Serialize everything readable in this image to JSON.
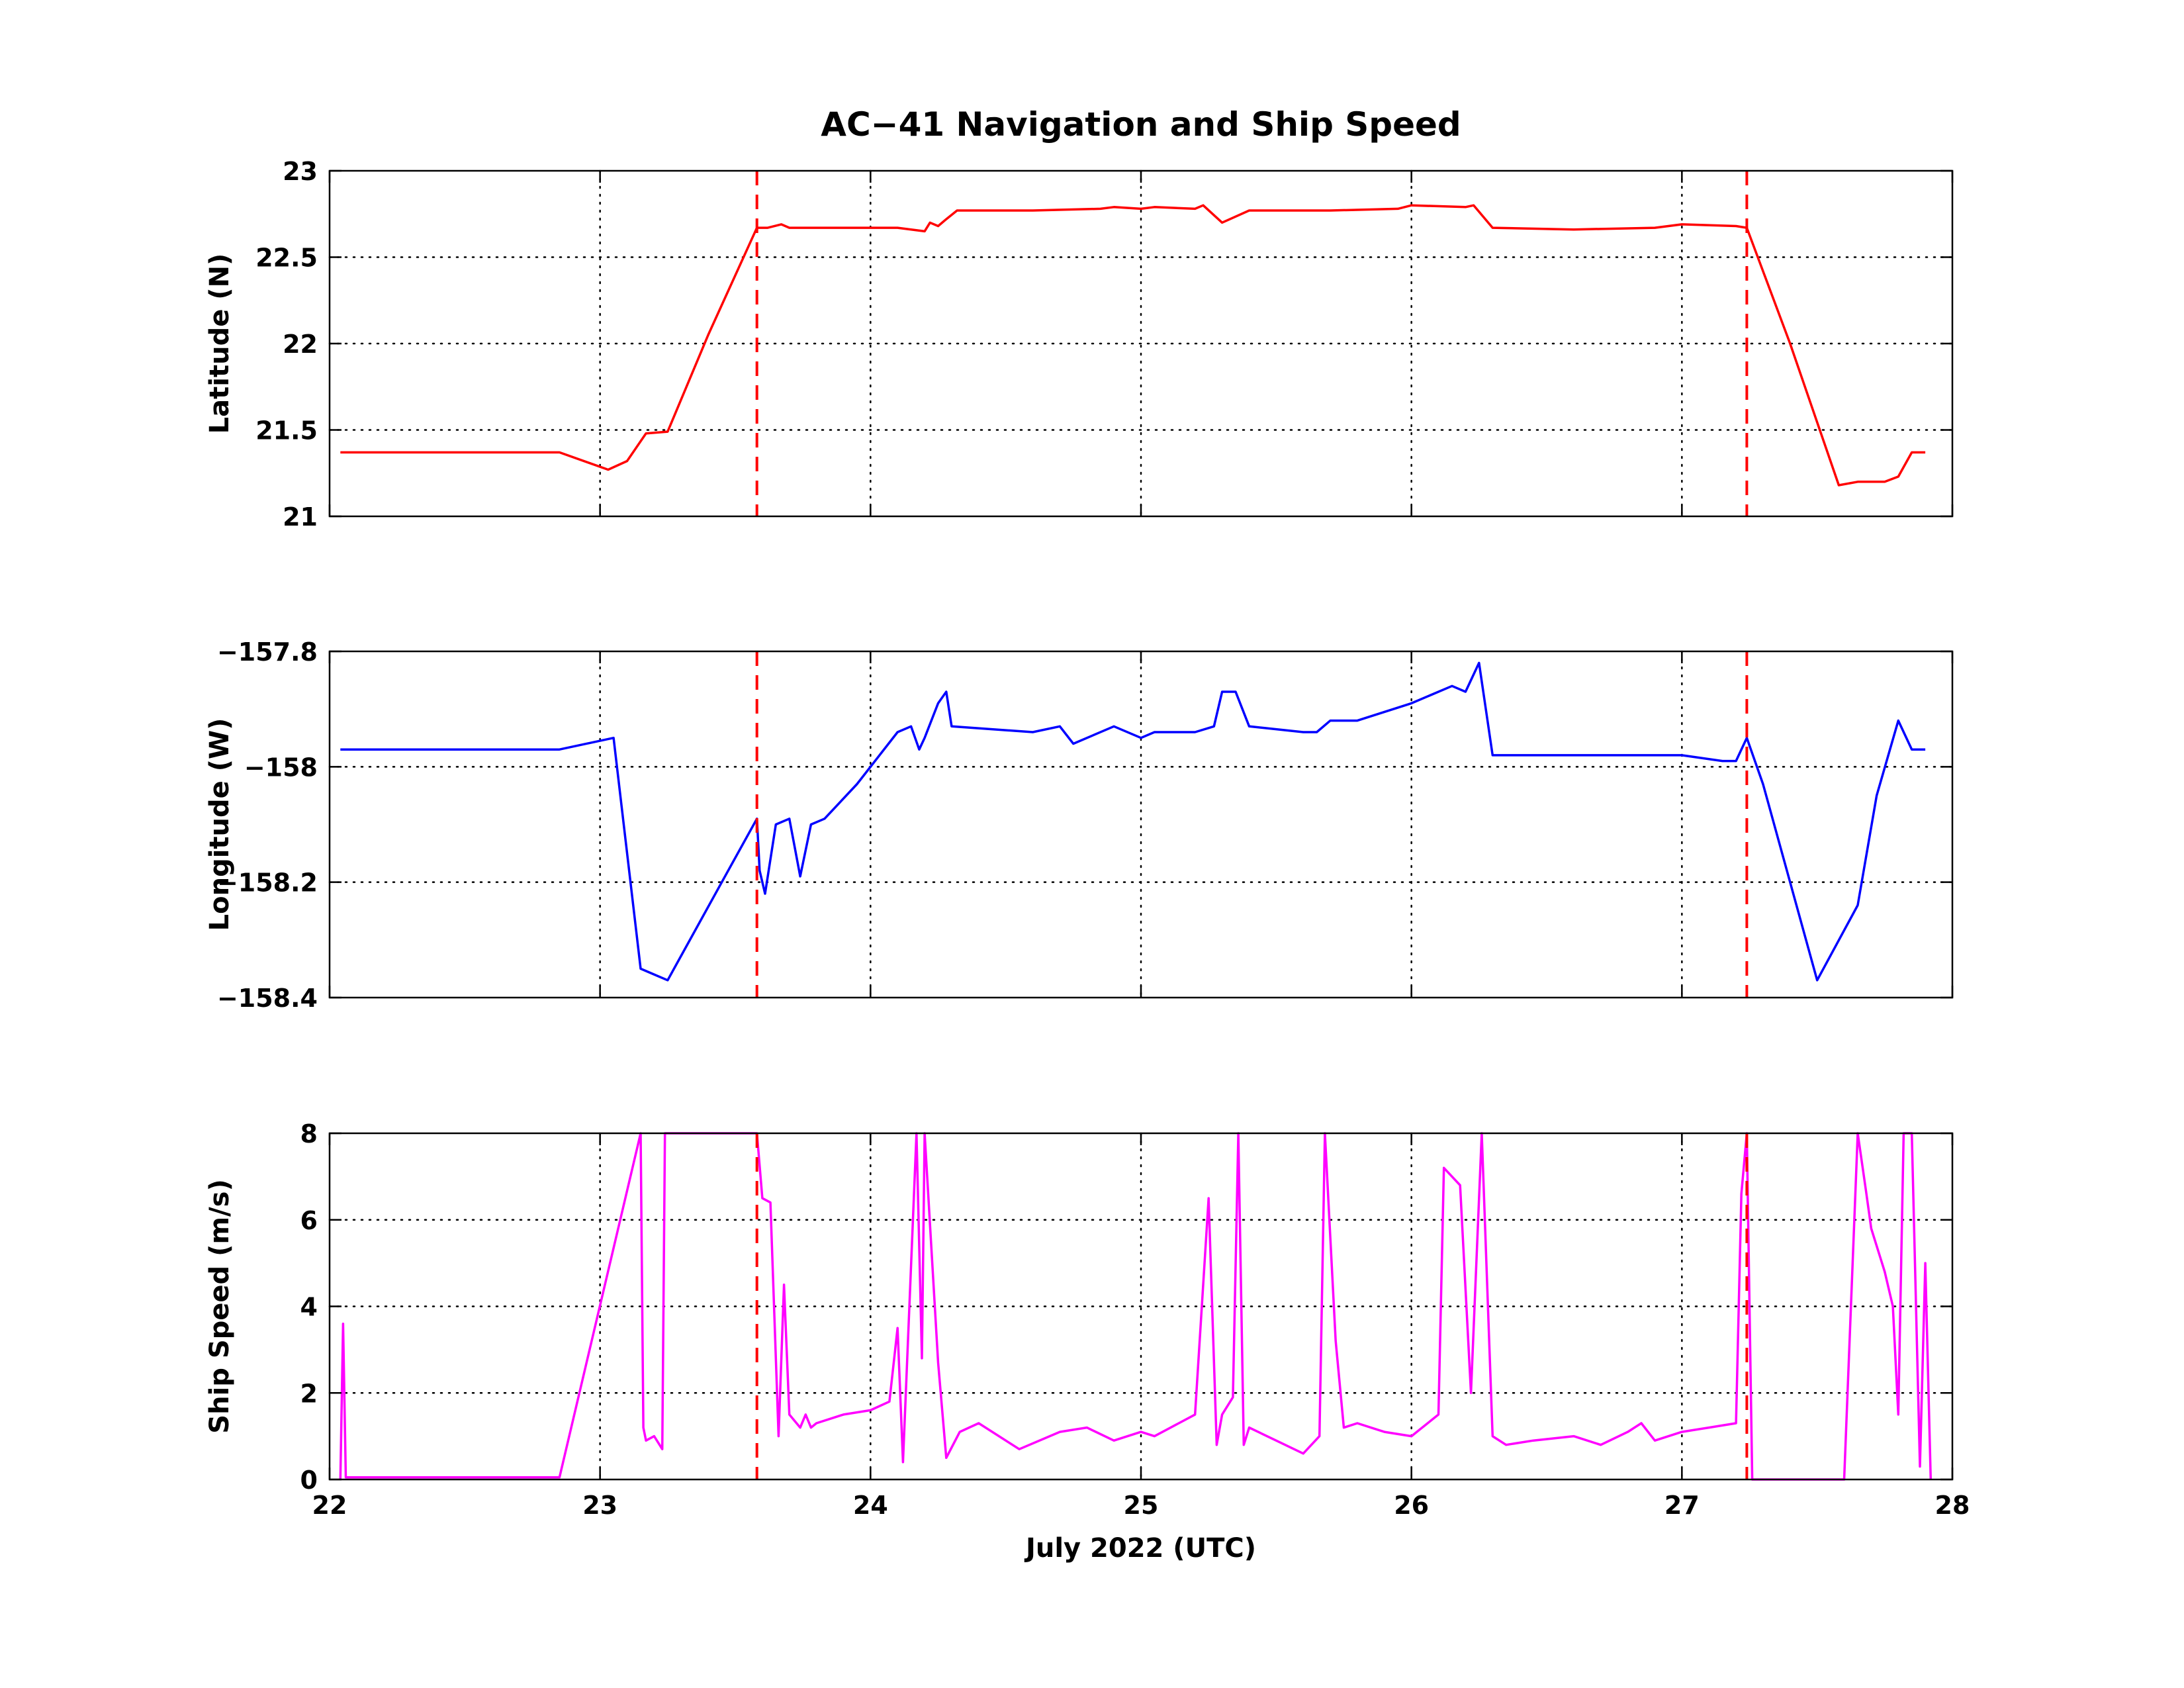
{
  "title": "AC−41 Navigation and Ship Speed",
  "xlabel": "July 2022 (UTC)",
  "chart_data": [
    {
      "type": "line",
      "title": "AC−41 Navigation and Ship Speed",
      "ylabel": "Latitude (N)",
      "xlabel": "",
      "xlim": [
        22,
        28
      ],
      "ylim": [
        21,
        23
      ],
      "xticks": [
        22,
        23,
        24,
        25,
        26,
        27,
        28
      ],
      "yticks": [
        21,
        21.5,
        22,
        22.5,
        23
      ],
      "ytick_labels": [
        "21",
        "21.5",
        "22",
        "22.5",
        "23"
      ],
      "grid": true,
      "color": "#ff0000",
      "vlines": [
        23.58,
        27.24
      ],
      "vline_color": "#ff0000",
      "x": [
        22.04,
        22.85,
        23.03,
        23.1,
        23.17,
        23.25,
        23.4,
        23.58,
        23.62,
        23.67,
        23.7,
        23.9,
        24.1,
        24.2,
        24.22,
        24.25,
        24.28,
        24.32,
        24.6,
        24.85,
        24.9,
        25.0,
        25.05,
        25.2,
        25.23,
        25.3,
        25.4,
        25.7,
        25.95,
        26.0,
        26.2,
        26.23,
        26.3,
        26.6,
        26.9,
        27.0,
        27.2,
        27.24,
        27.4,
        27.58,
        27.65,
        27.75,
        27.8,
        27.85,
        27.9
      ],
      "y": [
        21.37,
        21.37,
        21.27,
        21.32,
        21.48,
        21.49,
        22.05,
        22.67,
        22.67,
        22.69,
        22.67,
        22.67,
        22.67,
        22.65,
        22.7,
        22.68,
        22.72,
        22.77,
        22.77,
        22.78,
        22.79,
        22.78,
        22.79,
        22.78,
        22.8,
        22.7,
        22.77,
        22.77,
        22.78,
        22.8,
        22.79,
        22.8,
        22.67,
        22.66,
        22.67,
        22.69,
        22.68,
        22.67,
        22.0,
        21.18,
        21.2,
        21.2,
        21.23,
        21.37,
        21.37
      ]
    },
    {
      "type": "line",
      "ylabel": "Longitude (W)",
      "xlabel": "",
      "xlim": [
        22,
        28
      ],
      "ylim": [
        -158.4,
        -157.8
      ],
      "xticks": [
        22,
        23,
        24,
        25,
        26,
        27,
        28
      ],
      "yticks": [
        -158.4,
        -158.2,
        -158,
        -157.8
      ],
      "ytick_labels": [
        "−158.4",
        "−158.2",
        "−158",
        "−157.8"
      ],
      "grid": true,
      "color": "#0000ff",
      "vlines": [
        23.58,
        27.24
      ],
      "vline_color": "#ff0000",
      "x": [
        22.04,
        22.85,
        23.05,
        23.15,
        23.2,
        23.25,
        23.45,
        23.58,
        23.59,
        23.61,
        23.65,
        23.7,
        23.74,
        23.78,
        23.83,
        23.95,
        24.1,
        24.15,
        24.18,
        24.2,
        24.25,
        24.28,
        24.3,
        24.6,
        24.7,
        24.75,
        24.9,
        25.0,
        25.05,
        25.2,
        25.27,
        25.3,
        25.35,
        25.4,
        25.6,
        25.65,
        25.7,
        25.8,
        26.0,
        26.15,
        26.2,
        26.25,
        26.3,
        26.6,
        26.8,
        27.0,
        27.15,
        27.2,
        27.24,
        27.3,
        27.5,
        27.65,
        27.72,
        27.8,
        27.85,
        27.9
      ],
      "y": [
        -157.97,
        -157.97,
        -157.95,
        -158.35,
        -158.36,
        -158.37,
        -158.2,
        -158.09,
        -158.18,
        -158.22,
        -158.1,
        -158.09,
        -158.19,
        -158.1,
        -158.09,
        -158.03,
        -157.94,
        -157.93,
        -157.97,
        -157.95,
        -157.89,
        -157.87,
        -157.93,
        -157.94,
        -157.93,
        -157.96,
        -157.93,
        -157.95,
        -157.94,
        -157.94,
        -157.93,
        -157.87,
        -157.87,
        -157.93,
        -157.94,
        -157.94,
        -157.92,
        -157.92,
        -157.89,
        -157.86,
        -157.87,
        -157.82,
        -157.98,
        -157.98,
        -157.98,
        -157.98,
        -157.99,
        -157.99,
        -157.95,
        -158.03,
        -158.37,
        -158.24,
        -158.05,
        -157.92,
        -157.97,
        -157.97
      ]
    },
    {
      "type": "line",
      "ylabel": "Ship Speed (m/s)",
      "xlabel": "July 2022 (UTC)",
      "xlim": [
        22,
        28
      ],
      "ylim": [
        0,
        8
      ],
      "xticks": [
        22,
        23,
        24,
        25,
        26,
        27,
        28
      ],
      "yticks": [
        0,
        2,
        4,
        6,
        8
      ],
      "xtick_labels": [
        "22",
        "23",
        "24",
        "25",
        "26",
        "27",
        "28"
      ],
      "ytick_labels": [
        "0",
        "2",
        "4",
        "6",
        "8"
      ],
      "grid": true,
      "color": "#ff00ff",
      "vlines": [
        23.58,
        27.24
      ],
      "vline_color": "#ff0000",
      "x": [
        22.04,
        22.05,
        22.06,
        22.07,
        22.85,
        23.15,
        23.16,
        23.17,
        23.2,
        23.23,
        23.24,
        23.25,
        23.3,
        23.58,
        23.6,
        23.63,
        23.66,
        23.68,
        23.7,
        23.74,
        23.76,
        23.78,
        23.8,
        23.9,
        24.0,
        24.07,
        24.1,
        24.12,
        24.17,
        24.19,
        24.2,
        24.25,
        24.28,
        24.33,
        24.4,
        24.55,
        24.7,
        24.8,
        24.9,
        25.0,
        25.05,
        25.2,
        25.25,
        25.28,
        25.3,
        25.34,
        25.36,
        25.38,
        25.4,
        25.5,
        25.6,
        25.66,
        25.68,
        25.72,
        25.75,
        25.8,
        25.9,
        26.0,
        26.1,
        26.12,
        26.18,
        26.22,
        26.26,
        26.3,
        26.35,
        26.45,
        26.6,
        26.7,
        26.8,
        26.85,
        26.9,
        27.0,
        27.1,
        27.2,
        27.22,
        27.24,
        27.26,
        27.6,
        27.65,
        27.68,
        27.7,
        27.75,
        27.78,
        27.8,
        27.82,
        27.85,
        27.88,
        27.9,
        27.92
      ],
      "y": [
        0,
        3.6,
        0.05,
        0.05,
        0.05,
        8,
        1.2,
        0.9,
        1.0,
        0.7,
        8,
        8,
        8,
        8,
        6.5,
        6.4,
        1.0,
        4.5,
        1.5,
        1.2,
        1.5,
        1.2,
        1.3,
        1.5,
        1.6,
        1.8,
        3.5,
        0.4,
        8,
        2.8,
        8,
        2.7,
        0.5,
        1.1,
        1.3,
        0.7,
        1.1,
        1.2,
        0.9,
        1.1,
        1.0,
        1.5,
        6.5,
        0.8,
        1.5,
        1.9,
        8,
        0.8,
        1.2,
        0.9,
        0.6,
        1.0,
        8,
        3.2,
        1.2,
        1.3,
        1.1,
        1.0,
        1.5,
        7.2,
        6.8,
        2.0,
        8,
        1.0,
        0.8,
        0.9,
        1.0,
        0.8,
        1.1,
        1.3,
        0.9,
        1.1,
        1.2,
        1.3,
        6.6,
        8,
        0,
        0,
        8,
        6.7,
        5.8,
        4.8,
        4.0,
        1.5,
        8,
        8,
        0.3,
        5.0,
        0
      ]
    }
  ]
}
